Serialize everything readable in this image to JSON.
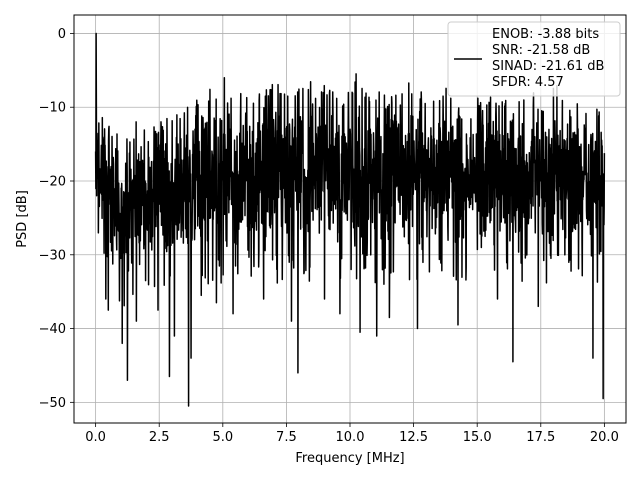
{
  "chart_data": {
    "type": "line",
    "title": "",
    "xlabel": "Frequency [MHz]",
    "ylabel": "PSD [dB]",
    "xlim": [
      -0.85,
      20.85
    ],
    "ylim": [
      -52.8,
      2.5
    ],
    "xticks": [
      0.0,
      2.5,
      5.0,
      7.5,
      10.0,
      12.5,
      15.0,
      17.5,
      20.0
    ],
    "xtick_labels": [
      "0.0",
      "2.5",
      "5.0",
      "7.5",
      "10.0",
      "12.5",
      "15.0",
      "17.5",
      "20.0"
    ],
    "yticks": [
      0,
      -10,
      -20,
      -30,
      -40,
      -50
    ],
    "ytick_labels": [
      "0",
      "−10",
      "−20",
      "−30",
      "−40",
      "−50"
    ],
    "grid": true,
    "legend_placement": "top-right",
    "legend_lines": [
      "ENOB: -3.88 bits",
      "SNR: -21.58 dB",
      "SINAD: -21.61 dB",
      "SFDR: 4.57"
    ],
    "series": [
      {
        "color": "#000000",
        "x_range": [
          0,
          20
        ],
        "num_points": 2048,
        "peak": {
          "x": 0.02,
          "y": 0
        },
        "floor_envelope_upper": [
          [
            0.05,
            -11
          ],
          [
            1.0,
            -14
          ],
          [
            2.5,
            -12
          ],
          [
            4.0,
            -9
          ],
          [
            7.5,
            -7
          ],
          [
            12.0,
            -8
          ],
          [
            20.0,
            -10
          ]
        ],
        "floor_envelope_lower": [
          [
            0.05,
            -25
          ],
          [
            1.0,
            -33
          ],
          [
            2.5,
            -32
          ],
          [
            4.0,
            -30
          ],
          [
            7.5,
            -30
          ],
          [
            12.0,
            -30
          ],
          [
            20.0,
            -30
          ]
        ],
        "deep_nulls": [
          {
            "x": 0.4,
            "y": -36.0
          },
          {
            "x": 0.5,
            "y": -37.5
          },
          {
            "x": 1.05,
            "y": -42.0
          },
          {
            "x": 1.25,
            "y": -47.0
          },
          {
            "x": 1.6,
            "y": -39.0
          },
          {
            "x": 2.45,
            "y": -37.5
          },
          {
            "x": 2.9,
            "y": -46.5
          },
          {
            "x": 3.1,
            "y": -41.0
          },
          {
            "x": 3.65,
            "y": -50.5
          },
          {
            "x": 3.75,
            "y": -44.0
          },
          {
            "x": 4.15,
            "y": -35.5
          },
          {
            "x": 4.75,
            "y": -36.5
          },
          {
            "x": 5.4,
            "y": -38.0
          },
          {
            "x": 6.6,
            "y": -36.0
          },
          {
            "x": 7.7,
            "y": -39.0
          },
          {
            "x": 7.95,
            "y": -46.0
          },
          {
            "x": 9.0,
            "y": -36.0
          },
          {
            "x": 9.6,
            "y": -38.0
          },
          {
            "x": 10.4,
            "y": -40.5
          },
          {
            "x": 11.05,
            "y": -41.0
          },
          {
            "x": 11.55,
            "y": -38.5
          },
          {
            "x": 12.65,
            "y": -40.0
          },
          {
            "x": 14.25,
            "y": -39.5
          },
          {
            "x": 15.8,
            "y": -36.0
          },
          {
            "x": 16.4,
            "y": -44.5
          },
          {
            "x": 17.4,
            "y": -37.0
          },
          {
            "x": 19.55,
            "y": -44.0
          },
          {
            "x": 19.95,
            "y": -49.5
          }
        ]
      }
    ]
  }
}
